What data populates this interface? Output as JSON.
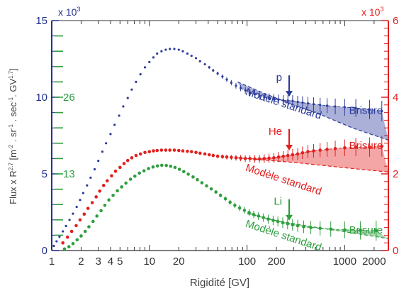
{
  "chart_data": {
    "type": "scatter",
    "xlabel": "Rigidité [GV]",
    "ylabel_left": "Flux x R",
    "ylabel_left_exponent": "2.7",
    "ylabel_left_units": " [m",
    "ylabel_left_units_exp": "-2",
    "ylabel_left_rest1": " . sr",
    "ylabel_left_rest1_exp": "-1",
    "ylabel_left_rest2": " . sec",
    "ylabel_left_rest2_exp": "-1",
    "ylabel_left_rest3": ". GV",
    "ylabel_left_rest3_exp": "1.7",
    "ylabel_left_end": "]",
    "left_multiplier": "x 10",
    "left_multiplier_exp": "3",
    "right_multiplier": "x 10",
    "right_multiplier_exp": "3",
    "xscale": "log",
    "xlim": [
      1,
      2800
    ],
    "ylim_left": [
      0,
      15
    ],
    "ylim_right": [
      0,
      6
    ],
    "x_ticks": [
      {
        "v": 1,
        "label": "1"
      },
      {
        "v": 2,
        "label": "2"
      },
      {
        "v": 3,
        "label": "3"
      },
      {
        "v": 4,
        "label": "4"
      },
      {
        "v": 5,
        "label": "5"
      },
      {
        "v": 10,
        "label": "10"
      },
      {
        "v": 20,
        "label": "20"
      },
      {
        "v": 100,
        "label": "100"
      },
      {
        "v": 200,
        "label": "200"
      },
      {
        "v": 1000,
        "label": "1000"
      },
      {
        "v": 2000,
        "label": "2000"
      }
    ],
    "y_ticks_left": [
      {
        "v": 0,
        "label": "0"
      },
      {
        "v": 5,
        "label": "5"
      },
      {
        "v": 10,
        "label": "10"
      },
      {
        "v": 15,
        "label": "15"
      }
    ],
    "y_ticks_right": [
      {
        "v": 0,
        "label": "0"
      },
      {
        "v": 2,
        "label": "2"
      },
      {
        "v": 4,
        "label": "4"
      },
      {
        "v": 6,
        "label": "6"
      }
    ],
    "y_ticks_green": [
      {
        "v": 5,
        "label": "13"
      },
      {
        "v": 10,
        "label": "26"
      }
    ],
    "colors": {
      "proton": "#2b3a9a",
      "helium": "#e0201f",
      "lithium": "#2e9e3e",
      "left_axis": "#23318f",
      "green_axis": "#2e9e3e",
      "right_axis": "#e0201f"
    },
    "series": [
      {
        "name": "p",
        "axis": "left",
        "x": [
          1.05,
          1.12,
          1.2,
          1.3,
          1.4,
          1.52,
          1.65,
          1.8,
          1.95,
          2.1,
          2.3,
          2.5,
          2.75,
          3.0,
          3.3,
          3.6,
          4.0,
          4.4,
          4.9,
          5.4,
          6.0,
          6.6,
          7.3,
          8.1,
          9.0,
          10,
          11,
          12,
          13.3,
          14.7,
          16.2,
          18,
          20,
          22,
          24.5,
          27,
          30,
          33,
          37,
          41,
          45,
          50,
          56,
          62,
          69,
          77,
          86,
          96,
          107,
          120,
          134,
          150,
          168,
          188,
          210,
          235,
          262,
          293,
          330,
          370,
          420,
          480,
          560,
          660,
          800,
          1000,
          1300,
          1800,
          2400
        ],
        "y": [
          0.3,
          0.6,
          0.9,
          1.25,
          1.6,
          2.0,
          2.4,
          2.85,
          3.3,
          3.75,
          4.25,
          4.75,
          5.3,
          5.85,
          6.45,
          7.0,
          7.6,
          8.2,
          8.8,
          9.4,
          9.95,
          10.5,
          11.0,
          11.5,
          11.95,
          12.3,
          12.6,
          12.85,
          13.0,
          13.1,
          13.15,
          13.15,
          13.1,
          13.0,
          12.85,
          12.7,
          12.55,
          12.35,
          12.15,
          11.95,
          11.75,
          11.55,
          11.35,
          11.15,
          10.95,
          10.75,
          10.6,
          10.45,
          10.3,
          10.2,
          10.1,
          10.0,
          9.95,
          9.9,
          9.85,
          9.8,
          9.78,
          9.76,
          9.7,
          9.65,
          9.6,
          9.55,
          9.5,
          9.45,
          9.4,
          9.35,
          9.3,
          9.2,
          9.1
        ],
        "model_x": [
          80,
          150,
          300,
          600,
          1200,
          2800
        ],
        "model_y": [
          11.0,
          10.25,
          9.5,
          8.8,
          8.0,
          7.2
        ],
        "annotation": "p",
        "arrow_x": 270,
        "model_label": "Modèle standard",
        "break_label": "Brisure"
      },
      {
        "name": "He",
        "axis": "right",
        "x": [
          1.3,
          1.45,
          1.6,
          1.78,
          1.95,
          2.15,
          2.35,
          2.6,
          2.85,
          3.1,
          3.4,
          3.7,
          4.1,
          4.5,
          5.0,
          5.5,
          6.0,
          6.6,
          7.3,
          8.1,
          9.0,
          10,
          11,
          12,
          13.3,
          14.7,
          16.2,
          18,
          20,
          22,
          24.5,
          27,
          30,
          33,
          37,
          41,
          45,
          50,
          56,
          62,
          69,
          77,
          86,
          96,
          107,
          120,
          134,
          150,
          168,
          188,
          210,
          235,
          262,
          293,
          330,
          370,
          420,
          480,
          560,
          660,
          800,
          1000,
          1300,
          1800,
          2400
        ],
        "y": [
          0.2,
          0.35,
          0.5,
          0.65,
          0.8,
          0.95,
          1.1,
          1.25,
          1.4,
          1.55,
          1.7,
          1.82,
          1.95,
          2.07,
          2.17,
          2.27,
          2.35,
          2.42,
          2.48,
          2.52,
          2.56,
          2.58,
          2.6,
          2.61,
          2.62,
          2.62,
          2.62,
          2.62,
          2.61,
          2.6,
          2.59,
          2.58,
          2.56,
          2.54,
          2.52,
          2.5,
          2.48,
          2.46,
          2.45,
          2.44,
          2.43,
          2.42,
          2.41,
          2.4,
          2.4,
          2.39,
          2.39,
          2.4,
          2.41,
          2.42,
          2.44,
          2.46,
          2.48,
          2.5,
          2.52,
          2.55,
          2.58,
          2.6,
          2.62,
          2.64,
          2.66,
          2.68,
          2.7,
          2.7,
          2.72
        ],
        "model_x": [
          80,
          150,
          300,
          600,
          1200,
          2800
        ],
        "model_y": [
          2.42,
          2.36,
          2.3,
          2.22,
          2.14,
          2.05
        ],
        "annotation": "He",
        "arrow_x": 270,
        "model_label": "Modèle standard",
        "break_label": "Brisure"
      },
      {
        "name": "Li",
        "axis": "green",
        "x": [
          1.35,
          1.5,
          1.65,
          1.82,
          2.0,
          2.2,
          2.4,
          2.65,
          2.9,
          3.2,
          3.5,
          3.85,
          4.25,
          4.7,
          5.2,
          5.75,
          6.4,
          7.1,
          7.9,
          8.8,
          9.8,
          10.9,
          12.1,
          13.4,
          14.9,
          16.5,
          18.3,
          20.3,
          22.5,
          25,
          28,
          31,
          34.5,
          38.5,
          43,
          48,
          53.5,
          60,
          67,
          75,
          84,
          94,
          105,
          117,
          131,
          147,
          165,
          185,
          207,
          232,
          260,
          292,
          330,
          380,
          450,
          560,
          720,
          1000,
          1450,
          2100
        ],
        "y": [
          0.1,
          0.25,
          0.45,
          0.7,
          0.95,
          1.25,
          1.55,
          1.9,
          2.25,
          2.6,
          2.95,
          3.3,
          3.6,
          3.9,
          4.15,
          4.4,
          4.65,
          4.85,
          5.05,
          5.2,
          5.35,
          5.45,
          5.52,
          5.56,
          5.55,
          5.5,
          5.42,
          5.3,
          5.15,
          4.98,
          4.8,
          4.62,
          4.42,
          4.22,
          4.02,
          3.82,
          3.6,
          3.38,
          3.15,
          2.95,
          2.78,
          2.62,
          2.48,
          2.35,
          2.25,
          2.15,
          2.05,
          1.97,
          1.9,
          1.82,
          1.75,
          1.68,
          1.62,
          1.55,
          1.5,
          1.45,
          1.4,
          1.35,
          1.32,
          1.3
        ],
        "model_x": [
          100,
          200,
          400,
          800,
          1500,
          2800
        ],
        "model_y": [
          2.4,
          1.95,
          1.62,
          1.32,
          1.05,
          0.78
        ],
        "annotation": "Li",
        "arrow_x": 270,
        "model_label": "Modèle standard",
        "break_label": "Brisure"
      }
    ]
  }
}
